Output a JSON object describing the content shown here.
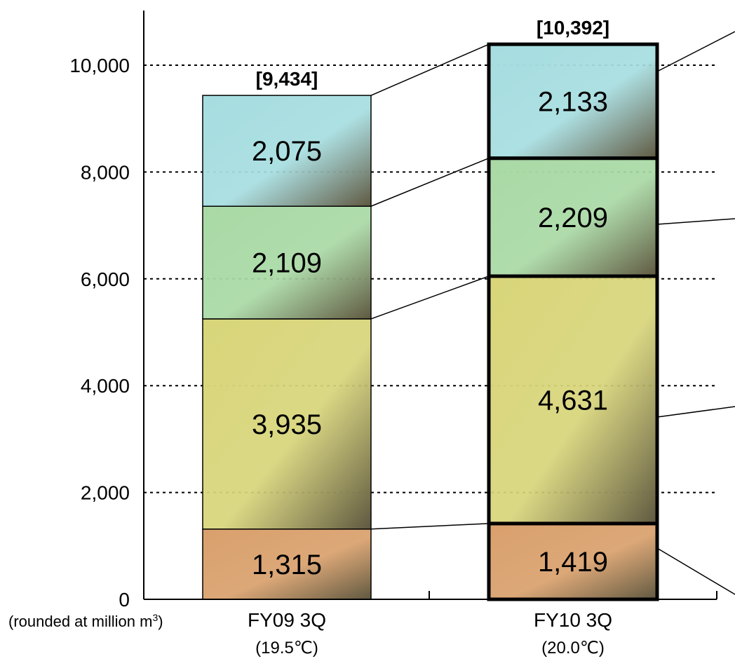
{
  "chart_data": {
    "type": "bar",
    "stacked": true,
    "categories": [
      "FY09 3Q",
      "FY10 3Q"
    ],
    "category_sublabels": [
      "(19.5℃)",
      "(20.0℃)"
    ],
    "series": [
      {
        "values": [
          1315,
          1419
        ],
        "color": "#d9a06c"
      },
      {
        "values": [
          3935,
          4631
        ],
        "color": "#d8d57a"
      },
      {
        "values": [
          2109,
          2209
        ],
        "color": "#a9d9a5"
      },
      {
        "values": [
          2075,
          2133
        ],
        "color": "#a6dde0"
      }
    ],
    "value_labels": [
      [
        "1,315",
        "3,935",
        "2,109",
        "2,075"
      ],
      [
        "1,419",
        "4,631",
        "2,209",
        "2,133"
      ]
    ],
    "totals": [
      9434,
      10392
    ],
    "total_labels": [
      "[9,434]",
      "[10,392]"
    ],
    "ylim": [
      0,
      10000
    ],
    "yticks": [
      "0",
      "2,000",
      "4,000",
      "6,000",
      "8,000",
      "10,000"
    ],
    "grid": true,
    "unit_note": "(rounded at million m",
    "unit_superscript": "3",
    "unit_note_close": ")",
    "highlight_category": "FY10 3Q"
  }
}
